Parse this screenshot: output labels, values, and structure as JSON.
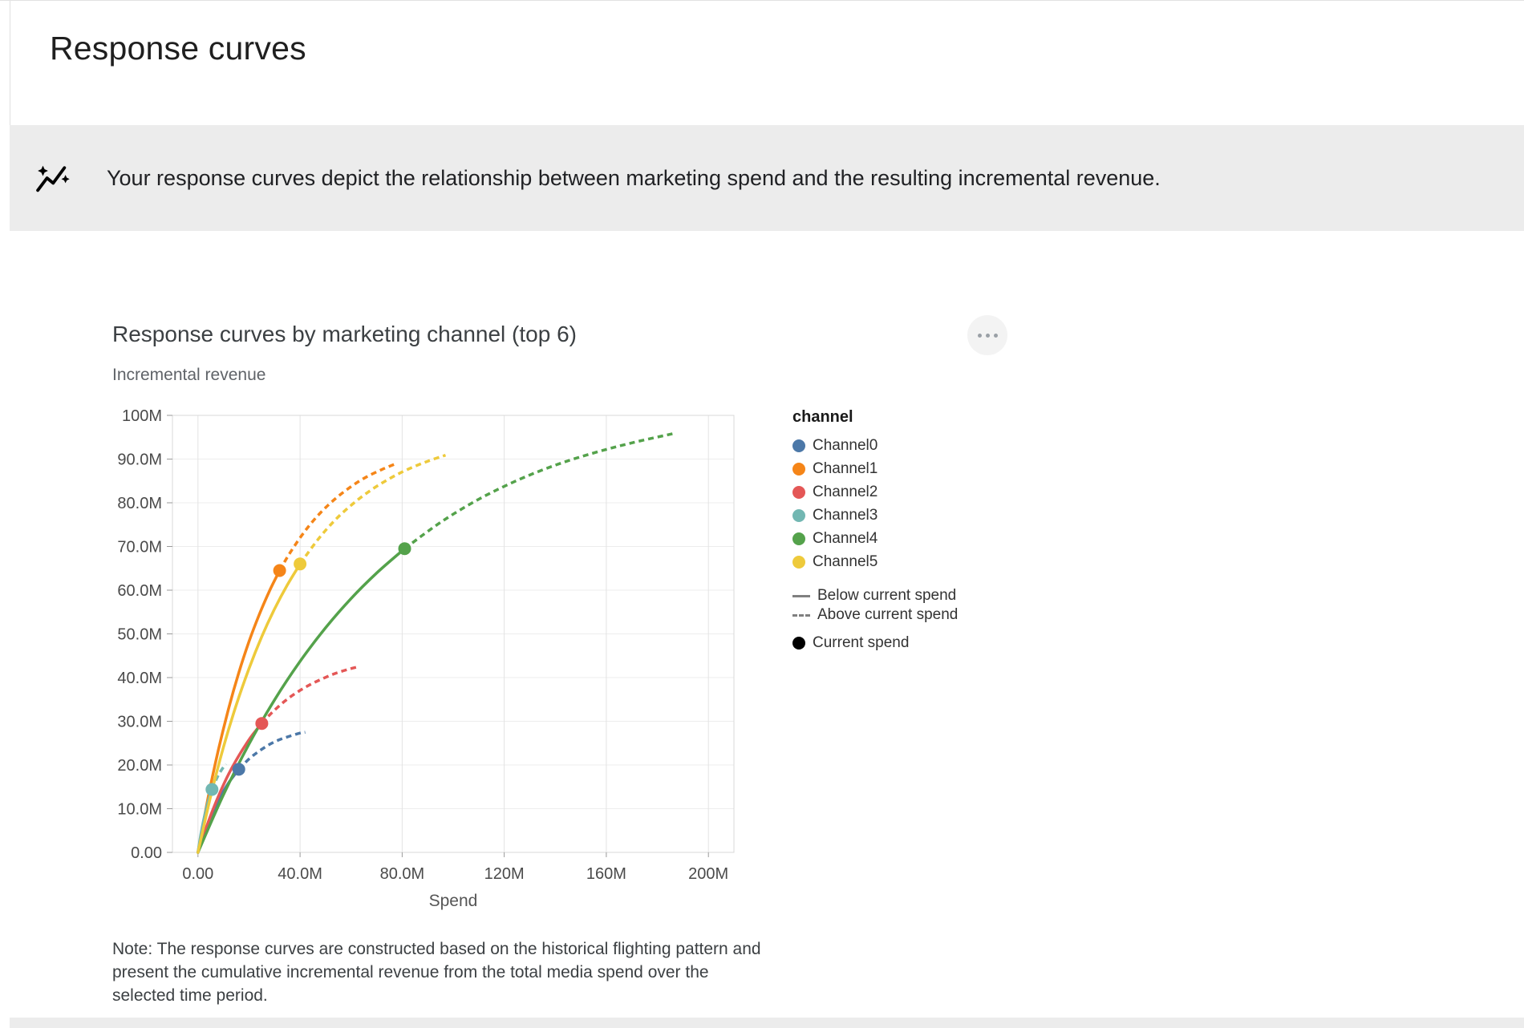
{
  "page": {
    "title": "Response curves"
  },
  "banner": {
    "icon": "insights-icon",
    "text": "Your response curves depict the relationship between marketing spend and the resulting incremental revenue."
  },
  "card": {
    "menu_icon": "more-horiz-icon",
    "note": "Note: The response curves are constructed based on the historical flighting pattern and present the cumulative incremental revenue from the total media spend over the selected time period."
  },
  "legend": {
    "title": "channel",
    "below_label": "Below current spend",
    "above_label": "Above current spend",
    "current_label": "Current spend"
  },
  "chart_data": {
    "type": "line",
    "title": "Response curves by marketing channel (top 6)",
    "xlabel": "Spend",
    "ylabel": "Incremental revenue",
    "units": "millions",
    "xlim": [
      0,
      200
    ],
    "ylim": [
      0,
      100
    ],
    "x_domain_padded": [
      -10,
      210
    ],
    "grid": true,
    "legend_position": "right",
    "x_ticks": [
      {
        "v": 0,
        "label": "0.00"
      },
      {
        "v": 40,
        "label": "40.0M"
      },
      {
        "v": 80,
        "label": "80.0M"
      },
      {
        "v": 120,
        "label": "120M"
      },
      {
        "v": 160,
        "label": "160M"
      },
      {
        "v": 200,
        "label": "200M"
      }
    ],
    "y_ticks": [
      {
        "v": 0,
        "label": "0.00"
      },
      {
        "v": 10,
        "label": "10.0M"
      },
      {
        "v": 20,
        "label": "20.0M"
      },
      {
        "v": 30,
        "label": "30.0M"
      },
      {
        "v": 40,
        "label": "40.0M"
      },
      {
        "v": 50,
        "label": "50.0M"
      },
      {
        "v": 60,
        "label": "60.0M"
      },
      {
        "v": 70,
        "label": "70.0M"
      },
      {
        "v": 80,
        "label": "80.0M"
      },
      {
        "v": 90,
        "label": "90.0M"
      },
      {
        "v": 100,
        "label": "100M"
      }
    ],
    "series": [
      {
        "name": "Channel0",
        "color": "#4c78a8",
        "current": {
          "x": 16,
          "y": 19.0
        },
        "below": [
          [
            0,
            0
          ],
          [
            2,
            3.6
          ],
          [
            4,
            6.7
          ],
          [
            6,
            9.5
          ],
          [
            8,
            11.9
          ],
          [
            10,
            14.0
          ],
          [
            12,
            15.9
          ],
          [
            14,
            17.5
          ],
          [
            16,
            19.0
          ]
        ],
        "above": [
          [
            16,
            19.0
          ],
          [
            20,
            21.4
          ],
          [
            24,
            23.2
          ],
          [
            28,
            24.7
          ],
          [
            32,
            25.8
          ],
          [
            36,
            26.6
          ],
          [
            40,
            27.3
          ],
          [
            42,
            27.5
          ]
        ]
      },
      {
        "name": "Channel1",
        "color": "#f58518",
        "current": {
          "x": 32,
          "y": 64.5
        },
        "below": [
          [
            0,
            0
          ],
          [
            4,
            12.6
          ],
          [
            8,
            23.5
          ],
          [
            12,
            32.9
          ],
          [
            16,
            41.1
          ],
          [
            20,
            48.3
          ],
          [
            24,
            54.4
          ],
          [
            28,
            59.8
          ],
          [
            32,
            64.5
          ]
        ],
        "above": [
          [
            32,
            64.5
          ],
          [
            36,
            68.5
          ],
          [
            42,
            73.6
          ],
          [
            48,
            77.7
          ],
          [
            54,
            81.0
          ],
          [
            60,
            83.7
          ],
          [
            66,
            85.9
          ],
          [
            72,
            87.6
          ],
          [
            77,
            88.8
          ]
        ]
      },
      {
        "name": "Channel2",
        "color": "#e45756",
        "current": {
          "x": 25,
          "y": 29.5
        },
        "below": [
          [
            0,
            0
          ],
          [
            3,
            5.3
          ],
          [
            6,
            10.0
          ],
          [
            9,
            14.2
          ],
          [
            12,
            17.9
          ],
          [
            15,
            21.1
          ],
          [
            18,
            24.0
          ],
          [
            21,
            26.6
          ],
          [
            25,
            29.5
          ]
        ],
        "above": [
          [
            25,
            29.5
          ],
          [
            29,
            32.0
          ],
          [
            34,
            34.6
          ],
          [
            39,
            36.7
          ],
          [
            44,
            38.4
          ],
          [
            49,
            39.8
          ],
          [
            54,
            41.0
          ],
          [
            59,
            41.9
          ],
          [
            63,
            42.5
          ]
        ]
      },
      {
        "name": "Channel3",
        "color": "#72b7b2",
        "current": {
          "x": 5.5,
          "y": 14.4
        },
        "below": [
          [
            0,
            0
          ],
          [
            1,
            3.7
          ],
          [
            2,
            6.8
          ],
          [
            3,
            9.4
          ],
          [
            4,
            11.7
          ],
          [
            5.5,
            14.4
          ]
        ],
        "above": [
          [
            5.5,
            14.4
          ],
          [
            7,
            16.5
          ],
          [
            8.5,
            18.2
          ],
          [
            10,
            19.5
          ],
          [
            11,
            20.2
          ]
        ]
      },
      {
        "name": "Channel4",
        "color": "#54a24b",
        "current": {
          "x": 81,
          "y": 69.5
        },
        "below": [
          [
            0,
            0
          ],
          [
            10,
            13.2
          ],
          [
            20,
            24.8
          ],
          [
            30,
            34.9
          ],
          [
            40,
            43.7
          ],
          [
            50,
            51.4
          ],
          [
            60,
            58.1
          ],
          [
            70,
            63.9
          ],
          [
            81,
            69.5
          ]
        ],
        "above": [
          [
            81,
            69.5
          ],
          [
            95,
            75.5
          ],
          [
            110,
            80.8
          ],
          [
            125,
            85.1
          ],
          [
            140,
            88.6
          ],
          [
            155,
            91.4
          ],
          [
            170,
            93.7
          ],
          [
            186,
            95.8
          ]
        ]
      },
      {
        "name": "Channel5",
        "color": "#eeca3b",
        "current": {
          "x": 40,
          "y": 66.0
        },
        "below": [
          [
            0,
            0
          ],
          [
            5,
            12.9
          ],
          [
            10,
            24.1
          ],
          [
            15,
            33.7
          ],
          [
            20,
            42.1
          ],
          [
            25,
            49.4
          ],
          [
            30,
            55.7
          ],
          [
            35,
            61.2
          ],
          [
            40,
            66.0
          ]
        ],
        "above": [
          [
            40,
            66.0
          ],
          [
            47,
            71.6
          ],
          [
            54,
            76.2
          ],
          [
            61,
            79.9
          ],
          [
            68,
            83.0
          ],
          [
            75,
            85.5
          ],
          [
            82,
            87.6
          ],
          [
            90,
            89.5
          ],
          [
            97,
            90.9
          ]
        ]
      }
    ]
  }
}
